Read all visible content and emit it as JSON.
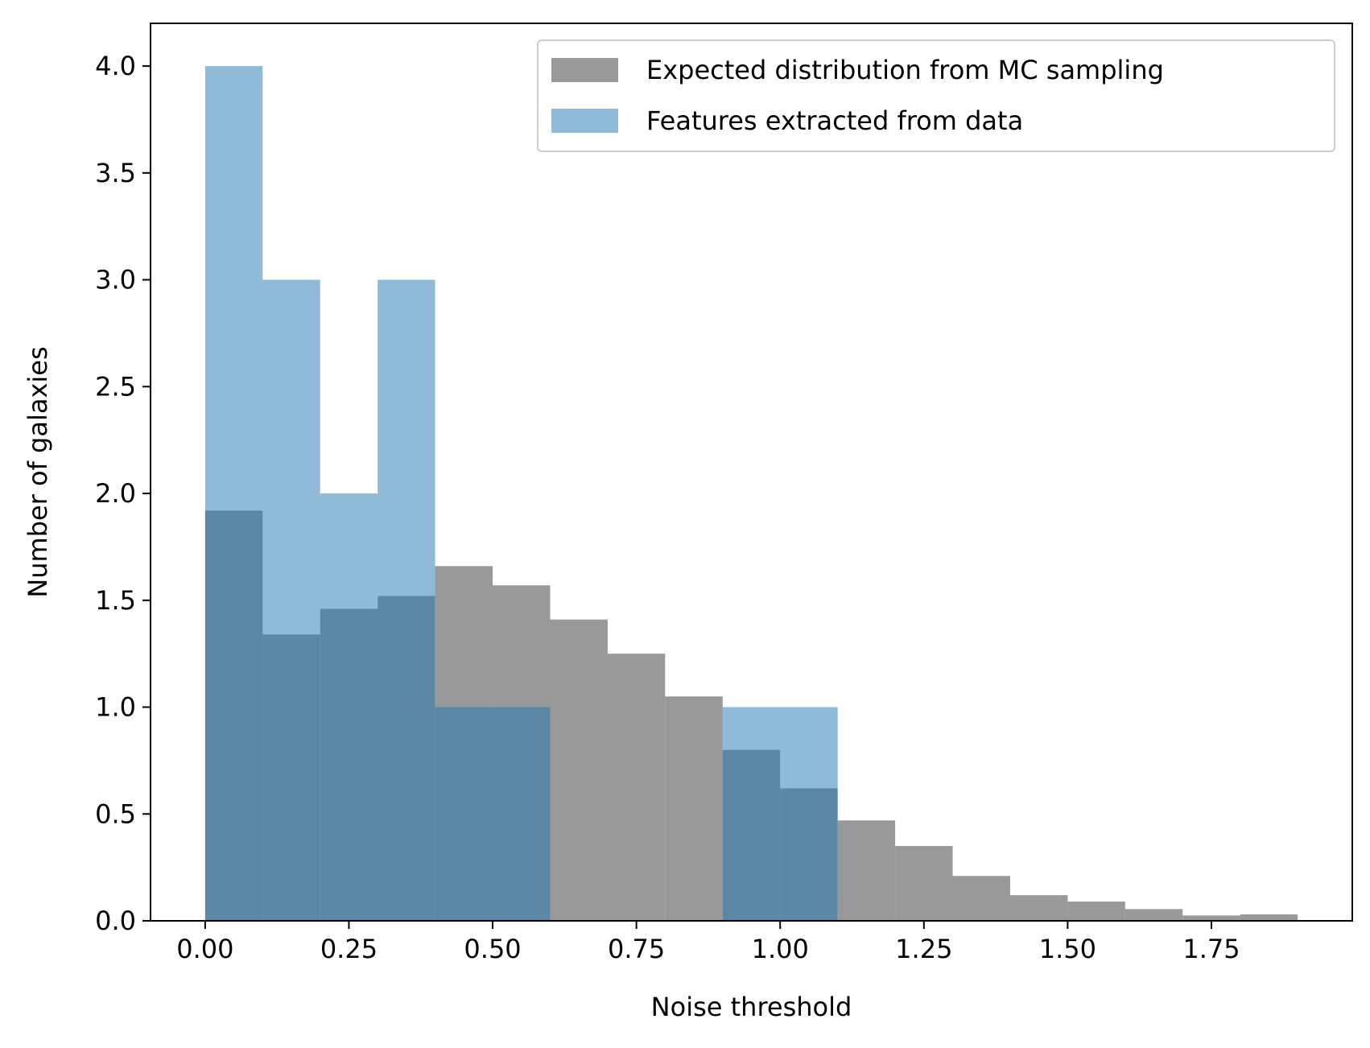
{
  "chart_data": {
    "type": "bar",
    "subtype": "overlapping-histogram",
    "title": "",
    "xlabel": "Noise threshold",
    "ylabel": "Number of galaxies",
    "xlim": [
      -0.095,
      1.995
    ],
    "ylim": [
      0.0,
      4.2
    ],
    "xticks": [
      "0.00",
      "0.25",
      "0.50",
      "0.75",
      "1.00",
      "1.25",
      "1.50",
      "1.75"
    ],
    "yticks": [
      "0.0",
      "0.5",
      "1.0",
      "1.5",
      "2.0",
      "2.5",
      "3.0",
      "3.5",
      "4.0"
    ],
    "bin_edges": [
      0.0,
      0.1,
      0.2,
      0.3,
      0.4,
      0.5,
      0.6,
      0.7,
      0.8,
      0.9,
      1.0,
      1.1,
      1.2,
      1.3,
      1.4,
      1.5,
      1.6,
      1.7,
      1.8,
      1.9
    ],
    "grid": false,
    "legend_position": "top-right",
    "series": [
      {
        "name": "Expected distribution from MC sampling",
        "color": "#7f7f7f",
        "opacity": 0.8,
        "values": [
          1.92,
          1.34,
          1.46,
          1.52,
          1.66,
          1.57,
          1.41,
          1.25,
          1.05,
          0.8,
          0.62,
          0.47,
          0.35,
          0.21,
          0.12,
          0.09,
          0.055,
          0.025,
          0.03
        ]
      },
      {
        "name": "Features extracted from data",
        "color": "#1f77b4",
        "opacity": 0.5,
        "values": [
          4,
          3,
          2,
          3,
          1,
          1,
          0,
          0,
          0,
          1,
          1,
          0,
          0,
          0,
          0,
          0,
          0,
          0,
          0
        ]
      }
    ]
  }
}
